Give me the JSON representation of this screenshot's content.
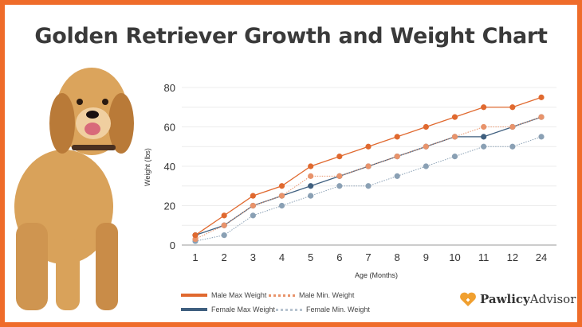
{
  "title": "Golden Retriever Growth and Weight Chart",
  "brand": {
    "name_bold": "Pawlicy",
    "name_regular": "Advisor",
    "icon": "paw-heart-icon",
    "color": "#f0a030"
  },
  "border_color": "#ef6c2a",
  "chart_data": {
    "type": "line",
    "title": "",
    "xlabel": "Age (Months)",
    "ylabel": "Weight (lbs)",
    "categories": [
      "1",
      "2",
      "3",
      "4",
      "5",
      "6",
      "7",
      "8",
      "9",
      "10",
      "11",
      "12",
      "24"
    ],
    "ylim": [
      0,
      80
    ],
    "yticks": [
      0,
      20,
      40,
      60,
      80
    ],
    "grid": true,
    "legend_placement": "bottom-left",
    "series": [
      {
        "name": "Male Max Weight",
        "color": "#e0692f",
        "style": "solid",
        "values": [
          5,
          15,
          25,
          30,
          40,
          45,
          50,
          55,
          60,
          65,
          70,
          70,
          75
        ]
      },
      {
        "name": "Male Min. Weight",
        "color": "#e8936b",
        "style": "dotted",
        "values": [
          3,
          10,
          20,
          25,
          35,
          35,
          40,
          45,
          50,
          55,
          60,
          60,
          65
        ]
      },
      {
        "name": "Female Max Weight",
        "color": "#3f5f7f",
        "style": "solid",
        "values": [
          5,
          10,
          20,
          25,
          30,
          35,
          40,
          45,
          50,
          55,
          55,
          60,
          65
        ]
      },
      {
        "name": "Female Min. Weight",
        "color": "#8aa0b4",
        "style": "dotted",
        "values": [
          2,
          5,
          15,
          20,
          25,
          30,
          30,
          35,
          40,
          45,
          50,
          50,
          55
        ]
      }
    ]
  }
}
